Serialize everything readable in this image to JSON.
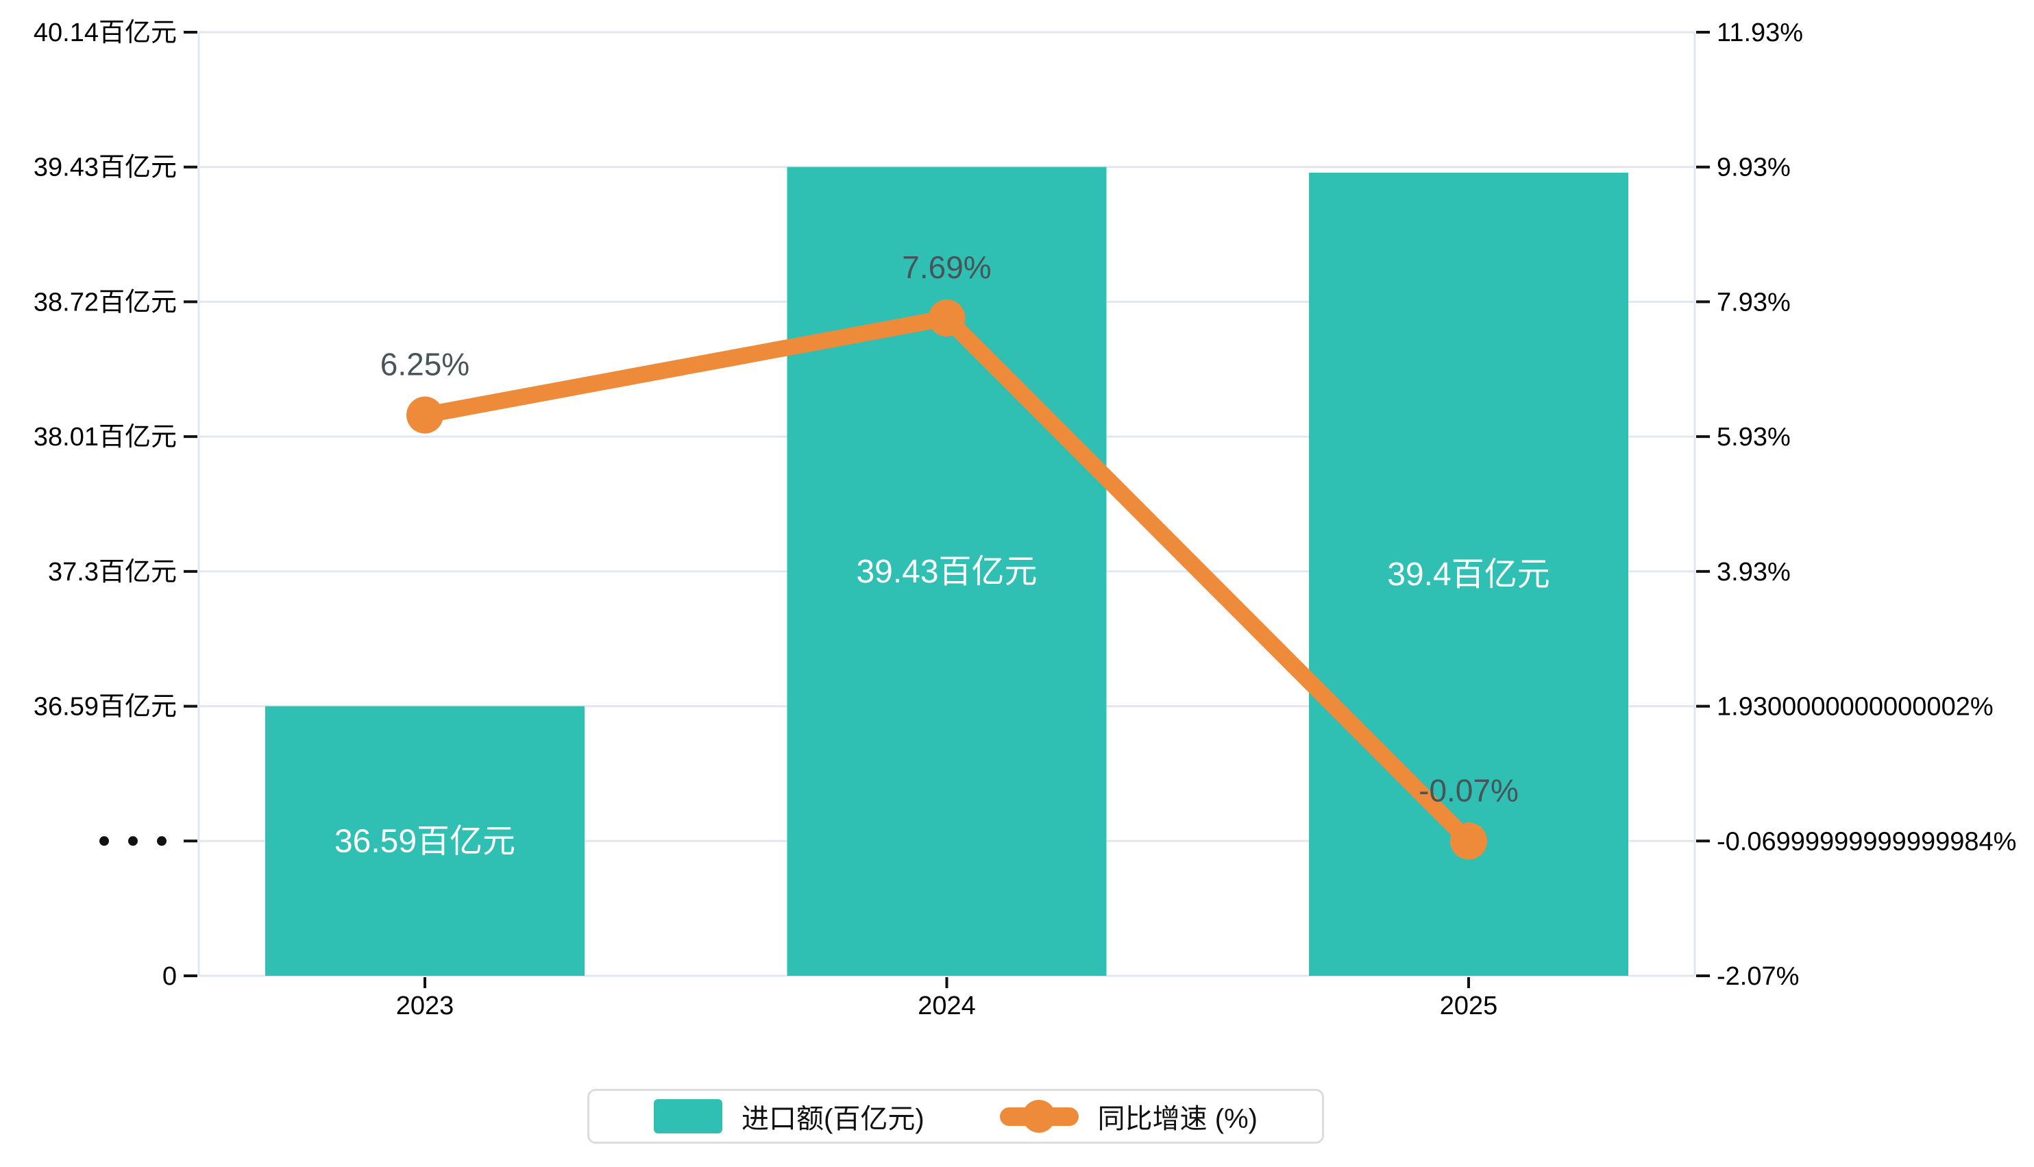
{
  "chart_data": {
    "type": "bar+line",
    "categories": [
      "2023",
      "2024",
      "2025"
    ],
    "series": [
      {
        "name": "进口额(百亿元)",
        "type": "bar",
        "yaxis": "left",
        "values": [
          36.59,
          39.43,
          39.4
        ],
        "data_labels": [
          "36.59百亿元",
          "39.43百亿元",
          "39.4百亿元"
        ],
        "color": "#2FBFB3",
        "data_label_color": "#ffffff"
      },
      {
        "name": "同比增速 (%)",
        "type": "line",
        "yaxis": "right",
        "values": [
          6.25,
          7.69,
          -0.07
        ],
        "data_labels": [
          "6.25%",
          "7.69%",
          "-0.07%"
        ],
        "color": "#EE8B3A",
        "data_label_color": "#475559"
      }
    ],
    "left_axis": {
      "broken": true,
      "tick_labels": [
        "40.14百亿元",
        "39.43百亿元",
        "38.72百亿元",
        "38.01百亿元",
        "37.3百亿元",
        "36.59百亿元",
        "···",
        "0"
      ],
      "numeric_ticks": [
        40.14,
        39.43,
        38.72,
        38.01,
        37.3,
        36.59
      ],
      "break_symbol": "···",
      "zero_label": "0"
    },
    "right_axis": {
      "tick_labels": [
        "11.93%",
        "9.93%",
        "7.93%",
        "5.93%",
        "3.93%",
        "1.9300000000000002%",
        "-0.06999999999999984%",
        "-2.07%"
      ],
      "max": 11.93,
      "min": -2.07
    },
    "x_tick_labels": [
      "2023",
      "2024",
      "2025"
    ],
    "grid": true,
    "legend_position": "bottom",
    "colors": {
      "bar": "#2FBFB3",
      "line": "#EE8B3A",
      "gridline": "#E2E6F0",
      "axis_line": "#E2E6F0",
      "tick_mark": "#111111",
      "axis_text": "#000000",
      "percent_label_text": "#475559",
      "bar_label_text": "#ffffff",
      "legend_border": "#dcdcdc"
    }
  }
}
